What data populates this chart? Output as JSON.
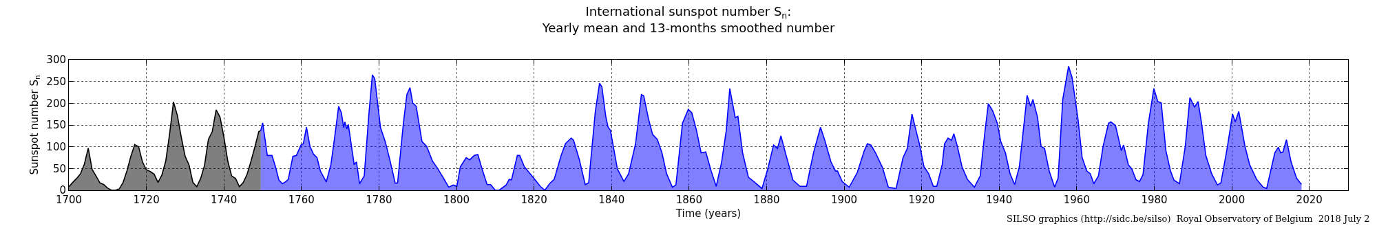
{
  "chart_data": {
    "type": "area",
    "title": "International sunspot number S$_{n}$:",
    "subtitle": "Yearly mean and 13-months smoothed number",
    "xlabel": "Time (years)",
    "ylabel": "Sunspot number S$_{n}$",
    "annotations": [
      "SILSO graphics (http://sidc.be/silso)  Royal Observatory of Belgium  2018 July 2"
    ],
    "xlim": [
      1700,
      2030
    ],
    "xticks": [
      1700,
      1720,
      1740,
      1760,
      1780,
      1800,
      1820,
      1840,
      1860,
      1880,
      1900,
      1920,
      1940,
      1960,
      1980,
      2000,
      2020
    ],
    "ylim": [
      0,
      300
    ],
    "yticks": [
      0,
      50,
      100,
      150,
      200,
      250,
      300
    ],
    "grid": true,
    "marker": "none",
    "line_style": "solid",
    "series": [
      {
        "color": "#000000",
        "x": [
          1700,
          1701,
          1702,
          1703,
          1704,
          1705,
          1706,
          1707,
          1708,
          1709,
          1710,
          1711,
          1712,
          1713,
          1714,
          1715,
          1716,
          1717,
          1718,
          1719,
          1720,
          1721,
          1722,
          1723,
          1724,
          1725,
          1726,
          1727,
          1728,
          1729,
          1730,
          1731,
          1732,
          1733,
          1734,
          1735,
          1736,
          1737,
          1738,
          1739,
          1740,
          1741,
          1742,
          1743,
          1744,
          1745,
          1746,
          1747,
          1748,
          1749,
          1749.5
        ],
        "values": [
          8,
          18,
          27,
          38,
          60,
          97,
          48,
          33,
          17,
          13,
          5,
          0,
          0,
          3,
          18,
          45,
          78,
          105,
          100,
          65,
          47,
          43,
          37,
          18,
          35,
          67,
          130,
          203,
          172,
          122,
          78,
          58,
          18,
          8,
          27,
          57,
          117,
          135,
          185,
          168,
          122,
          67,
          33,
          27,
          8,
          18,
          37,
          67,
          100,
          135,
          137
        ]
      },
      {
        "color": "#0000ff",
        "x": [
          1749.5,
          1750.0,
          1751.2,
          1752.4,
          1753.3,
          1754.2,
          1755.1,
          1756.0,
          1756.6,
          1757.8,
          1758.7,
          1759.9,
          1760.5,
          1761.3,
          1762.2,
          1763.1,
          1764.0,
          1764.9,
          1766.4,
          1767.6,
          1768.5,
          1769.6,
          1770.3,
          1770.9,
          1771.2,
          1771.7,
          1772.1,
          1773.6,
          1774.2,
          1775.0,
          1776.2,
          1777.4,
          1778.3,
          1778.9,
          1780.4,
          1781.6,
          1782.8,
          1784.2,
          1784.8,
          1786.3,
          1787.2,
          1788.0,
          1788.7,
          1789.6,
          1791.1,
          1792.3,
          1793.8,
          1795.0,
          1796.5,
          1798.0,
          1799.2,
          1800.1,
          1801.0,
          1802.5,
          1803.4,
          1804.6,
          1805.5,
          1806.7,
          1807.9,
          1808.8,
          1810.0,
          1811.0,
          1812.8,
          1813.6,
          1814.2,
          1815.7,
          1816.3,
          1817.5,
          1819.0,
          1820.2,
          1821.6,
          1822.8,
          1824.0,
          1825.2,
          1827.0,
          1828.1,
          1829.6,
          1830.2,
          1831.7,
          1833.2,
          1834.1,
          1835.8,
          1836.9,
          1837.5,
          1838.5,
          1839.1,
          1839.7,
          1841.5,
          1843.2,
          1844.4,
          1846.2,
          1847.7,
          1848.3,
          1849.5,
          1850.6,
          1851.8,
          1853.0,
          1854.2,
          1855.7,
          1856.6,
          1858.3,
          1859.8,
          1860.7,
          1861.9,
          1863.1,
          1864.3,
          1865.7,
          1867.0,
          1868.4,
          1869.6,
          1870.5,
          1871.4,
          1871.9,
          1872.6,
          1873.8,
          1875.3,
          1876.7,
          1878.8,
          1880.3,
          1881.8,
          1882.8,
          1883.7,
          1884.7,
          1886.8,
          1888.6,
          1890.3,
          1892.1,
          1893.9,
          1895.1,
          1896.6,
          1897.8,
          1898.3,
          1899.5,
          1901.3,
          1903.4,
          1905.2,
          1906.0,
          1906.9,
          1908.1,
          1909.9,
          1911.4,
          1913.4,
          1915.2,
          1916.3,
          1917.5,
          1918.8,
          1919.4,
          1920.6,
          1921.8,
          1923.0,
          1923.9,
          1925.3,
          1925.9,
          1926.8,
          1927.7,
          1928.3,
          1929.2,
          1930.4,
          1931.8,
          1933.6,
          1935.1,
          1936.3,
          1937.2,
          1938.3,
          1939.5,
          1940.4,
          1941.6,
          1942.8,
          1944.0,
          1945.2,
          1947.2,
          1948.1,
          1948.7,
          1949.9,
          1950.8,
          1951.7,
          1952.9,
          1954.3,
          1955.2,
          1956.4,
          1957.9,
          1958.8,
          1960.3,
          1961.4,
          1962.6,
          1963.5,
          1964.4,
          1965.6,
          1966.8,
          1968.2,
          1968.8,
          1970.0,
          1971.5,
          1972.1,
          1973.3,
          1974.2,
          1975.3,
          1976.2,
          1977.1,
          1978.5,
          1979.9,
          1980.9,
          1981.8,
          1983.0,
          1984.2,
          1985.1,
          1986.5,
          1988.0,
          1989.2,
          1990.4,
          1991.3,
          1992.2,
          1993.3,
          1994.8,
          1996.3,
          1997.2,
          1998.7,
          2000.2,
          2000.9,
          2001.8,
          2003.4,
          2004.6,
          2006.4,
          2008.1,
          2009.0,
          2011.1,
          2012.0,
          2012.6,
          2013.2,
          2014.1,
          2015.3,
          2016.7,
          2017.8,
          2018.0
        ],
        "values": [
          137,
          155,
          80,
          80,
          54,
          23,
          15,
          20,
          25,
          78,
          80,
          104,
          107,
          145,
          101,
          83,
          75,
          44,
          19,
          59,
          117,
          193,
          178,
          144,
          157,
          141,
          151,
          59,
          65,
          15,
          33,
          175,
          265,
          257,
          144,
          112,
          70,
          16,
          17,
          154,
          220,
          236,
          201,
          193,
          112,
          101,
          67,
          52,
          30,
          7,
          12,
          9,
          54,
          75,
          70,
          80,
          82,
          46,
          13,
          13,
          0,
          0,
          12,
          25,
          24,
          80,
          80,
          54,
          38,
          25,
          9,
          0,
          15,
          25,
          80,
          107,
          120,
          115,
          70,
          13,
          17,
          180,
          246,
          238,
          170,
          145,
          138,
          49,
          20,
          38,
          107,
          220,
          217,
          165,
          128,
          117,
          86,
          38,
          7,
          12,
          154,
          186,
          178,
          138,
          86,
          88,
          44,
          9,
          65,
          138,
          234,
          191,
          167,
          170,
          86,
          30,
          20,
          4,
          49,
          104,
          96,
          125,
          91,
          23,
          9,
          9,
          86,
          145,
          112,
          65,
          44,
          44,
          20,
          7,
          41,
          91,
          107,
          104,
          86,
          52,
          7,
          4,
          75,
          96,
          175,
          128,
          107,
          54,
          38,
          9,
          9,
          59,
          107,
          120,
          115,
          130,
          101,
          54,
          25,
          7,
          33,
          133,
          199,
          183,
          154,
          112,
          86,
          38,
          13,
          54,
          218,
          193,
          209,
          167,
          101,
          96,
          44,
          7,
          28,
          209,
          285,
          259,
          165,
          75,
          44,
          38,
          15,
          33,
          101,
          154,
          157,
          149,
          91,
          104,
          59,
          49,
          24,
          20,
          36,
          154,
          234,
          204,
          201,
          91,
          44,
          23,
          15,
          101,
          213,
          191,
          204,
          154,
          80,
          38,
          12,
          17,
          91,
          175,
          157,
          181,
          101,
          59,
          25,
          7,
          4,
          86,
          99,
          86,
          88,
          116,
          65,
          28,
          15,
          14
        ]
      }
    ]
  }
}
